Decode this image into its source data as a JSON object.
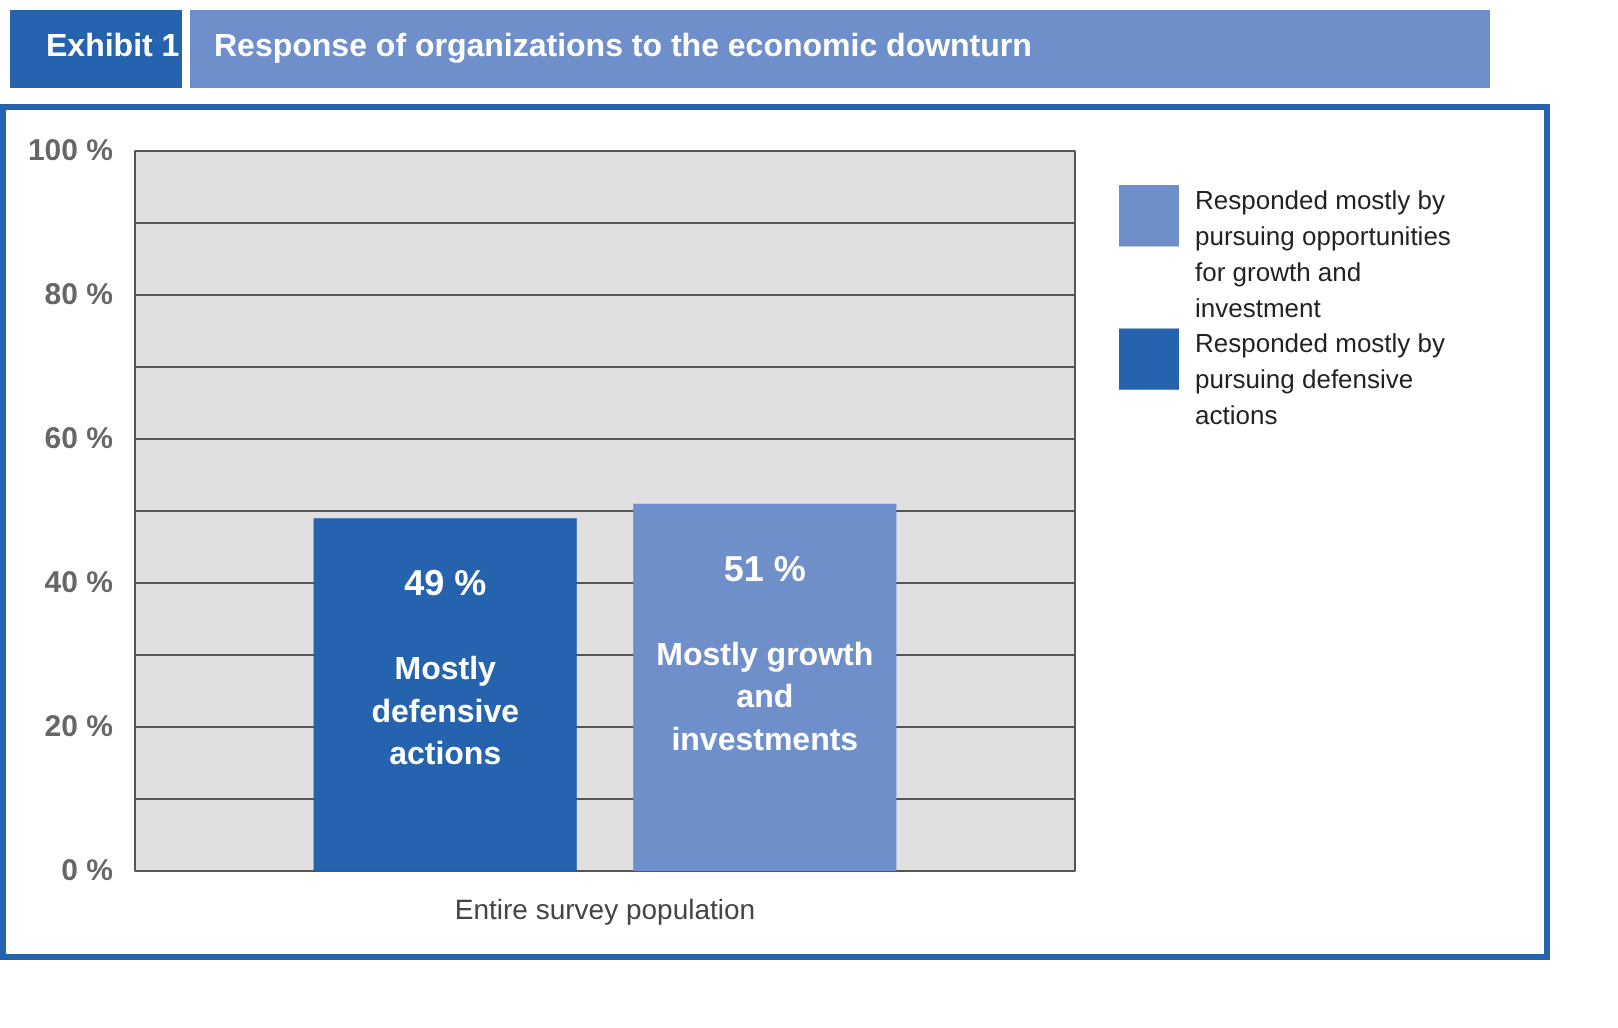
{
  "chart_data": {
    "type": "bar",
    "title": "Response of organizations to the economic downturn",
    "categories": [
      "Entire survey population"
    ],
    "series": [
      {
        "name": "Responded mostly by pursuing defensive actions",
        "color": "#2563ae",
        "values": [
          49
        ],
        "value_labels": [
          "49 %"
        ]
      },
      {
        "name": "Responded mostly by pursuing opportunities for growth and investment",
        "color": "#6f8fcb",
        "values": [
          51
        ],
        "value_labels": [
          "51 %"
        ]
      }
    ],
    "annotations": [
      "Exhibit 1",
      "Mostly defensive actions",
      "Mostly growth and investments"
    ],
    "ylim": [
      0,
      100
    ],
    "yticks": [
      {
        "value": 0,
        "label": "0 %"
      },
      {
        "value": 10,
        "label": null
      },
      {
        "value": 20,
        "label": "20 %"
      },
      {
        "value": 30,
        "label": null
      },
      {
        "value": 40,
        "label": "40 %"
      },
      {
        "value": 50,
        "label": null
      },
      {
        "value": 60,
        "label": "60 %"
      },
      {
        "value": 70,
        "label": null
      },
      {
        "value": 80,
        "label": "80 %"
      },
      {
        "value": 90,
        "label": null
      },
      {
        "value": 100,
        "label": "100 %"
      }
    ],
    "grid": "y",
    "legend": "right"
  }
}
